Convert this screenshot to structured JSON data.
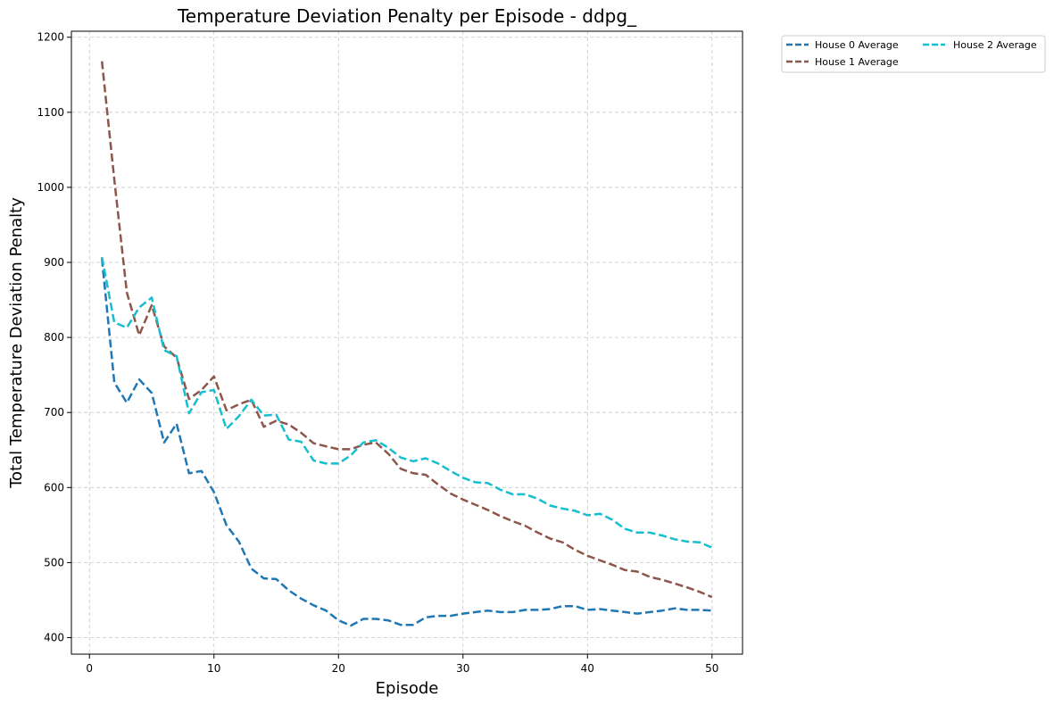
{
  "chart_data": {
    "type": "line",
    "title": "Temperature Deviation Penalty per Episode - ddpg_",
    "xlabel": "Episode",
    "ylabel": "Total Temperature Deviation Penalty",
    "xlim": [
      -1.45,
      52.45
    ],
    "ylim": [
      378,
      1208
    ],
    "xticks": [
      0,
      10,
      20,
      30,
      40,
      50
    ],
    "yticks": [
      400,
      500,
      600,
      700,
      800,
      900,
      1000,
      1100,
      1200
    ],
    "grid": true,
    "legend_position": "outside-top-right",
    "x": [
      1,
      2,
      3,
      4,
      5,
      6,
      7,
      8,
      9,
      10,
      11,
      12,
      13,
      14,
      15,
      16,
      17,
      18,
      19,
      20,
      21,
      22,
      23,
      24,
      25,
      26,
      27,
      28,
      29,
      30,
      31,
      32,
      33,
      34,
      35,
      36,
      37,
      38,
      39,
      40,
      41,
      42,
      43,
      44,
      45,
      46,
      47,
      48,
      49,
      50
    ],
    "series": [
      {
        "name": "House 0 Average",
        "color": "#1f77b4",
        "values": [
          905,
          740,
          713,
          744,
          726,
          660,
          685,
          619,
          622,
          594,
          550,
          528,
          492,
          479,
          478,
          463,
          452,
          443,
          436,
          423,
          416,
          425,
          425,
          423,
          417,
          417,
          427,
          429,
          429,
          432,
          434,
          436,
          434,
          434,
          437,
          437,
          438,
          442,
          442,
          437,
          438,
          436,
          434,
          432,
          434,
          436,
          439,
          437,
          437,
          436
        ]
      },
      {
        "name": "House 1 Average",
        "color": "#8c564b",
        "values": [
          1168,
          1010,
          860,
          803,
          843,
          788,
          773,
          718,
          730,
          748,
          703,
          711,
          717,
          681,
          689,
          684,
          673,
          659,
          655,
          651,
          651,
          657,
          660,
          645,
          625,
          619,
          617,
          604,
          592,
          584,
          577,
          570,
          562,
          555,
          549,
          540,
          532,
          527,
          517,
          509,
          503,
          497,
          490,
          488,
          481,
          477,
          472,
          467,
          461,
          454
        ]
      },
      {
        "name": "House 2 Average",
        "color": "#17becf",
        "values": [
          907,
          820,
          813,
          840,
          853,
          783,
          775,
          699,
          727,
          730,
          678,
          695,
          717,
          696,
          697,
          664,
          661,
          636,
          632,
          632,
          643,
          660,
          663,
          653,
          640,
          635,
          639,
          632,
          622,
          613,
          607,
          606,
          597,
          591,
          591,
          585,
          576,
          572,
          569,
          563,
          565,
          557,
          545,
          540,
          540,
          536,
          531,
          528,
          527,
          520
        ]
      }
    ]
  }
}
